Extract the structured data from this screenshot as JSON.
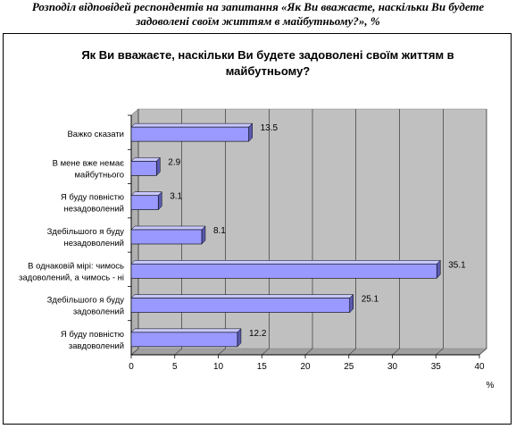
{
  "caption": {
    "line1": "Розподіл відповідей респондентів на запитання «Як Ви вважаєте, наскільки Ви будете",
    "line2": "задоволені своїм життям в майбутньому?», %"
  },
  "chart_data": {
    "type": "bar",
    "orientation": "horizontal",
    "title": [
      "Як Ви вважаєте, наскільки Ви будете задоволені своїм життям в",
      "майбутньому?"
    ],
    "xlabel": "%",
    "xlim": [
      0,
      40
    ],
    "xticks": [
      0,
      5,
      10,
      15,
      20,
      25,
      30,
      35,
      40
    ],
    "grid": true,
    "categories": [
      [
        "Важко сказати"
      ],
      [
        "В мене вже немає",
        "майбутнього"
      ],
      [
        "Я буду повністю",
        "незадоволений"
      ],
      [
        "Здебільшого я буду",
        "незадоволений"
      ],
      [
        "В однаковій мірі: чимось",
        "задоволений, а чимось - ні"
      ],
      [
        "Здебільшого я буду",
        "задоволений"
      ],
      [
        "Я буду повністю",
        "завдоволений"
      ]
    ],
    "values": [
      13.5,
      2.9,
      3.1,
      8.1,
      35.1,
      25.1,
      12.2
    ],
    "value_labels": [
      "13.5",
      "2.9",
      "3.1",
      "8.1",
      "35.1",
      "25.1",
      "12.2"
    ],
    "colors": {
      "bar_front": "#9999ff",
      "bar_top": "#c8c8ff",
      "bar_side": "#5a5ab0",
      "plot_bg": "#c0c0c0",
      "plot_wall": "#b0b0b0"
    }
  }
}
